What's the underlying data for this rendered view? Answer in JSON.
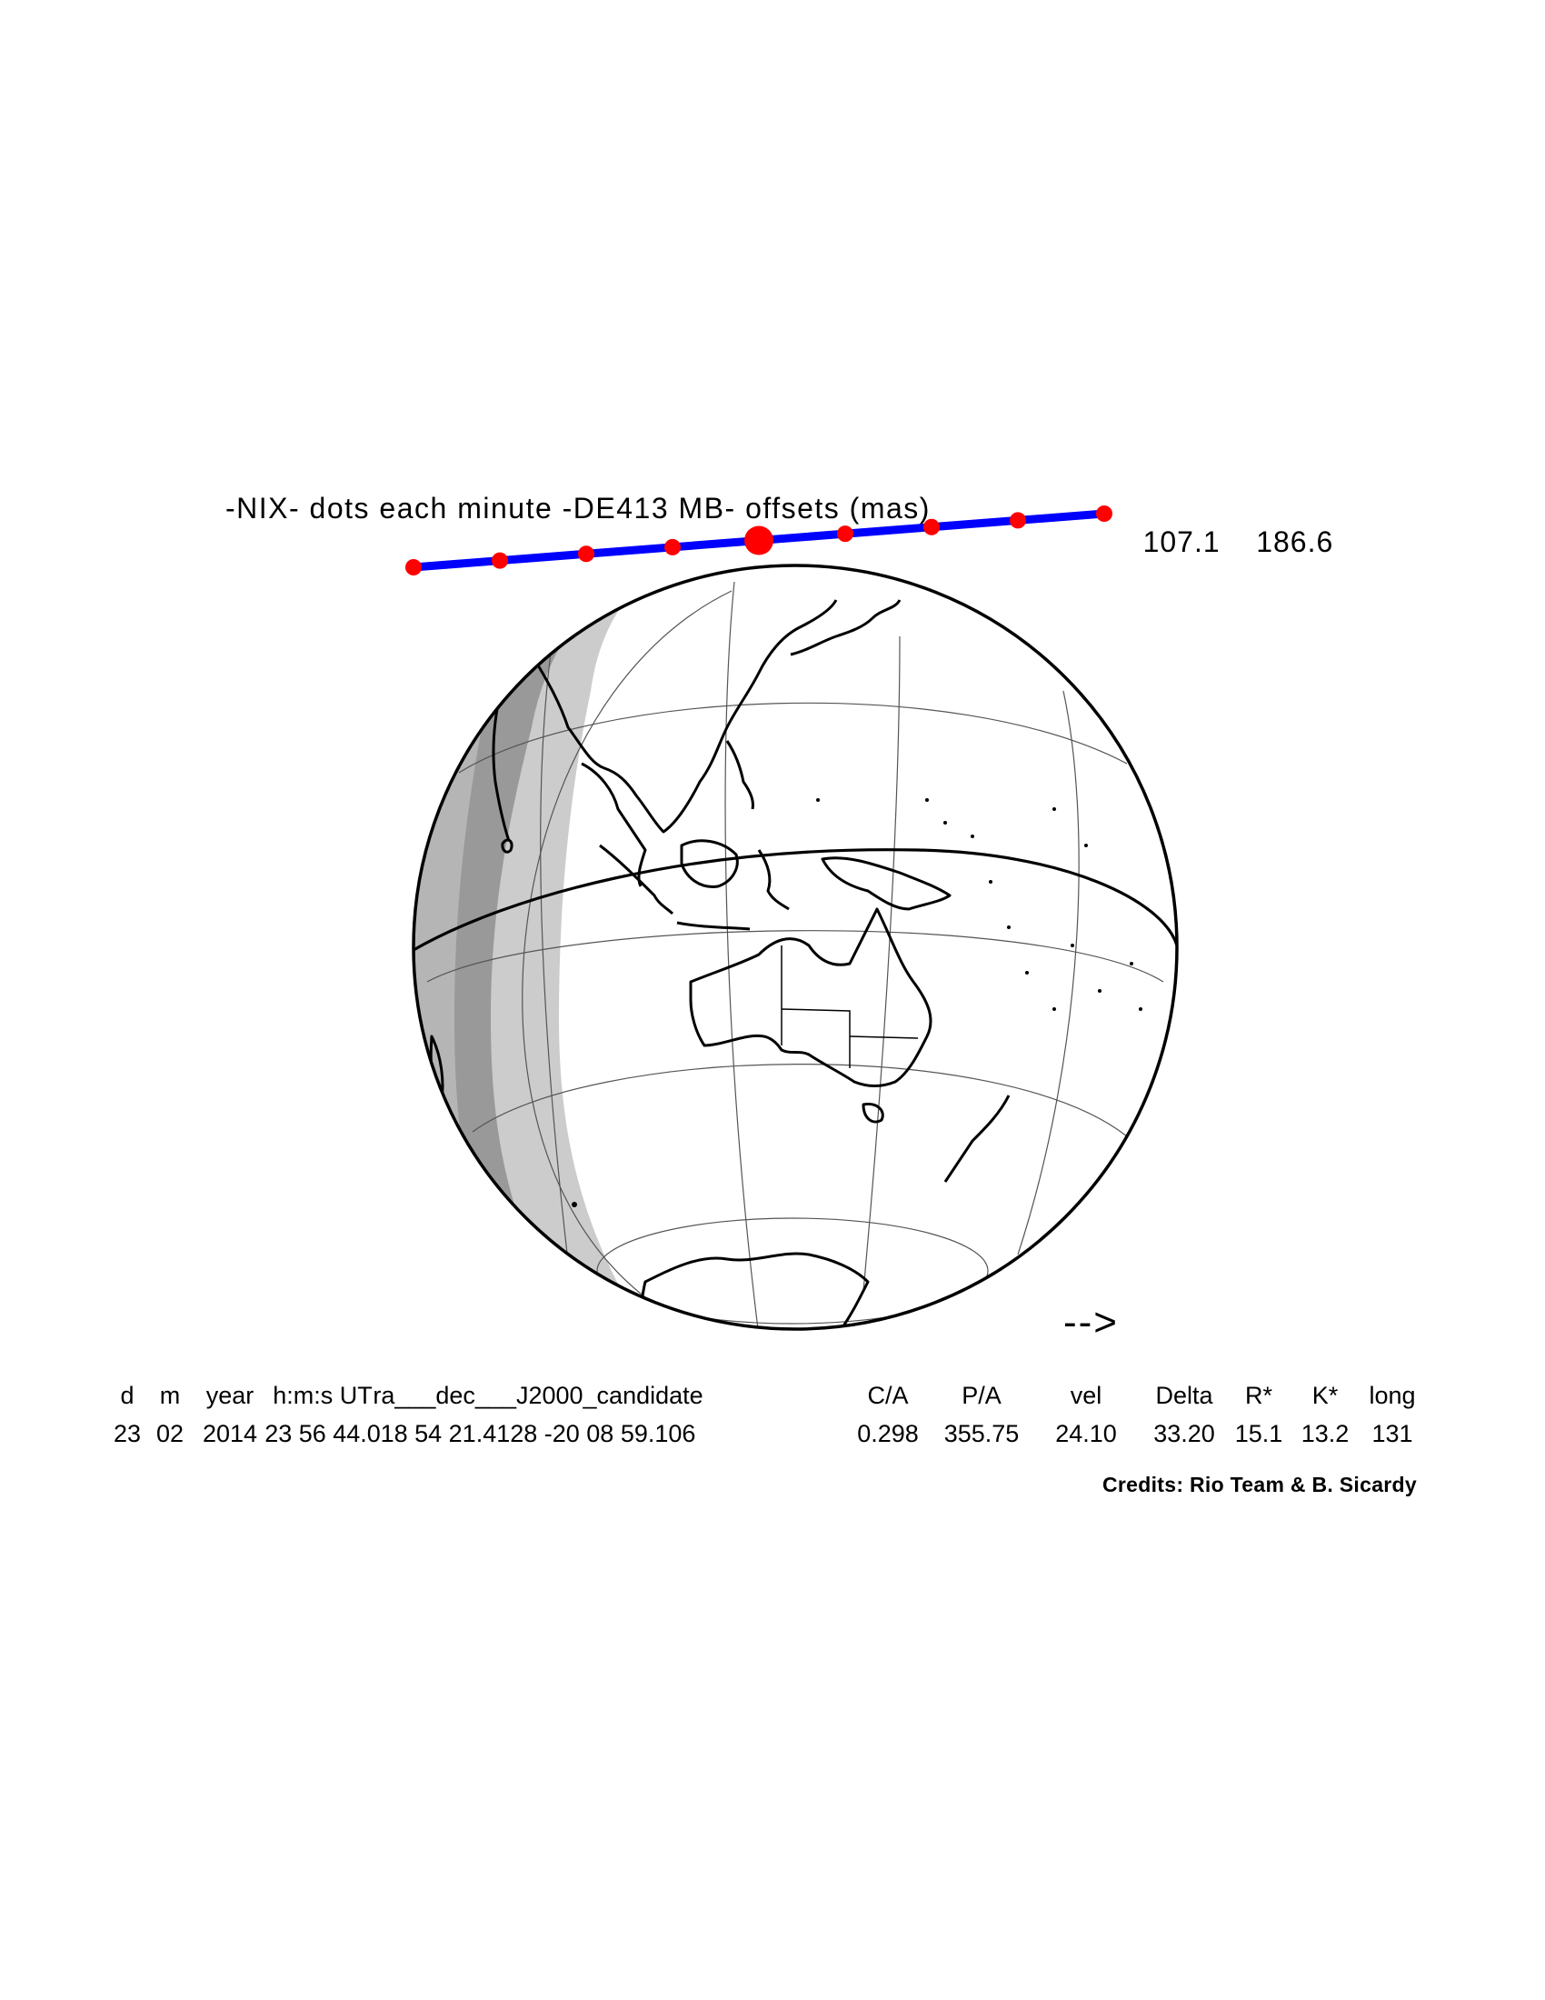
{
  "title": "-NIX- dots each minute -DE413 MB- offsets (mas)",
  "offsets": [
    "107.1",
    "186.6"
  ],
  "direction_arrow": "-->",
  "table": {
    "headers": [
      "d",
      "m",
      "year",
      "h:m:s UT",
      "ra___dec___J2000_candidate",
      "C/A",
      "P/A",
      "vel",
      "Delta",
      "R*",
      "K*",
      "long"
    ],
    "values": [
      "23",
      "02",
      "2014",
      "23 56 44.0",
      "18 54 21.4128 -20 08 59.106",
      "0.298",
      "355.75",
      "24.10",
      "33.20",
      "15.1",
      "13.2",
      "131"
    ]
  },
  "credits": "Credits: Rio Team & B. Sicardy",
  "colors": {
    "path_line": "#0000ff",
    "path_dots": "#ff0000",
    "night_dark": "#999999",
    "twilight_light": "#cccccc",
    "ink": "#000000"
  }
}
